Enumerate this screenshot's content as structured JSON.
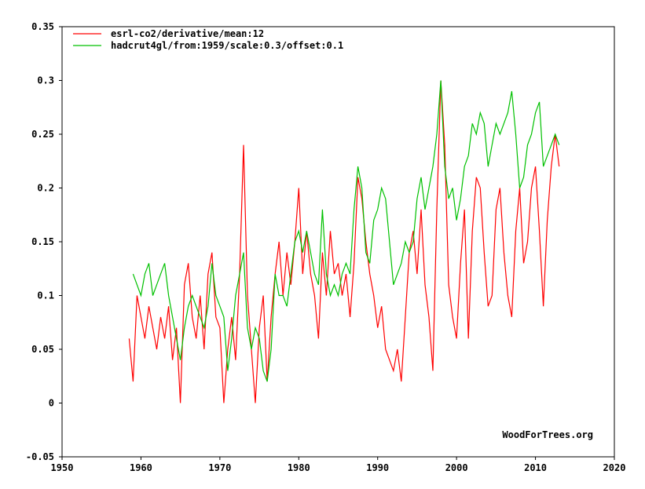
{
  "chart_data": {
    "type": "line",
    "title": "",
    "xlabel": "",
    "ylabel": "",
    "xlim": [
      1950,
      2020
    ],
    "ylim": [
      -0.05,
      0.35
    ],
    "xticks": [
      1950,
      1960,
      1970,
      1980,
      1990,
      2000,
      2010,
      2020
    ],
    "yticks": [
      -0.05,
      0,
      0.05,
      0.1,
      0.15,
      0.2,
      0.25,
      0.3,
      0.35
    ],
    "xtick_labels": [
      "1950",
      "1960",
      "1970",
      "1980",
      "1990",
      "2000",
      "2010",
      "2020"
    ],
    "ytick_labels": [
      "-0.05",
      "0",
      "0.05",
      "0.1",
      "0.15",
      "0.2",
      "0.25",
      "0.3",
      "0.35"
    ],
    "grid": false,
    "legend_position": "top-left",
    "credit": "WoodForTrees.org",
    "series": [
      {
        "name": "esrl-co2/derivative/mean:12",
        "color": "#ff0000",
        "x": [
          1958.5,
          1959.0,
          1959.5,
          1960.0,
          1960.5,
          1961.0,
          1961.5,
          1962.0,
          1962.5,
          1963.0,
          1963.5,
          1964.0,
          1964.5,
          1965.0,
          1965.5,
          1966.0,
          1966.5,
          1967.0,
          1967.5,
          1968.0,
          1968.5,
          1969.0,
          1969.5,
          1970.0,
          1970.5,
          1971.0,
          1971.5,
          1972.0,
          1972.5,
          1973.0,
          1973.5,
          1974.0,
          1974.5,
          1975.0,
          1975.5,
          1976.0,
          1976.5,
          1977.0,
          1977.5,
          1978.0,
          1978.5,
          1979.0,
          1979.5,
          1980.0,
          1980.5,
          1981.0,
          1981.5,
          1982.0,
          1982.5,
          1983.0,
          1983.5,
          1984.0,
          1984.5,
          1985.0,
          1985.5,
          1986.0,
          1986.5,
          1987.0,
          1987.5,
          1988.0,
          1988.5,
          1989.0,
          1989.5,
          1990.0,
          1990.5,
          1991.0,
          1991.5,
          1992.0,
          1992.5,
          1993.0,
          1993.5,
          1994.0,
          1994.5,
          1995.0,
          1995.5,
          1996.0,
          1996.5,
          1997.0,
          1997.5,
          1998.0,
          1998.5,
          1999.0,
          1999.5,
          2000.0,
          2000.5,
          2001.0,
          2001.5,
          2002.0,
          2002.5,
          2003.0,
          2003.5,
          2004.0,
          2004.5,
          2005.0,
          2005.5,
          2006.0,
          2006.5,
          2007.0,
          2007.5,
          2008.0,
          2008.5,
          2009.0,
          2009.5,
          2010.0,
          2010.5,
          2011.0,
          2011.5,
          2012.0,
          2012.5,
          2013.0
        ],
        "y": [
          0.06,
          0.02,
          0.1,
          0.08,
          0.06,
          0.09,
          0.07,
          0.05,
          0.08,
          0.06,
          0.09,
          0.04,
          0.07,
          0.0,
          0.11,
          0.13,
          0.08,
          0.06,
          0.1,
          0.05,
          0.12,
          0.14,
          0.08,
          0.07,
          0.0,
          0.05,
          0.08,
          0.04,
          0.12,
          0.24,
          0.1,
          0.05,
          0.0,
          0.07,
          0.1,
          0.02,
          0.08,
          0.12,
          0.15,
          0.1,
          0.14,
          0.11,
          0.15,
          0.2,
          0.12,
          0.16,
          0.12,
          0.1,
          0.06,
          0.14,
          0.1,
          0.16,
          0.12,
          0.13,
          0.1,
          0.12,
          0.08,
          0.13,
          0.21,
          0.19,
          0.15,
          0.12,
          0.1,
          0.07,
          0.09,
          0.05,
          0.04,
          0.03,
          0.05,
          0.02,
          0.08,
          0.14,
          0.16,
          0.12,
          0.18,
          0.11,
          0.08,
          0.03,
          0.18,
          0.3,
          0.24,
          0.11,
          0.08,
          0.06,
          0.13,
          0.18,
          0.06,
          0.16,
          0.21,
          0.2,
          0.14,
          0.09,
          0.1,
          0.18,
          0.2,
          0.14,
          0.1,
          0.08,
          0.16,
          0.2,
          0.13,
          0.15,
          0.2,
          0.22,
          0.16,
          0.09,
          0.17,
          0.22,
          0.25,
          0.22
        ]
      },
      {
        "name": "hadcrut4gl/from:1959/scale:0.3/offset:0.1",
        "color": "#00c000",
        "x": [
          1959.0,
          1959.5,
          1960.0,
          1960.5,
          1961.0,
          1961.5,
          1962.0,
          1962.5,
          1963.0,
          1963.5,
          1964.0,
          1964.5,
          1965.0,
          1965.5,
          1966.0,
          1966.5,
          1967.0,
          1967.5,
          1968.0,
          1968.5,
          1969.0,
          1969.5,
          1970.0,
          1970.5,
          1971.0,
          1971.5,
          1972.0,
          1972.5,
          1973.0,
          1973.5,
          1974.0,
          1974.5,
          1975.0,
          1975.5,
          1976.0,
          1976.5,
          1977.0,
          1977.5,
          1978.0,
          1978.5,
          1979.0,
          1979.5,
          1980.0,
          1980.5,
          1981.0,
          1981.5,
          1982.0,
          1982.5,
          1983.0,
          1983.5,
          1984.0,
          1984.5,
          1985.0,
          1985.5,
          1986.0,
          1986.5,
          1987.0,
          1987.5,
          1988.0,
          1988.5,
          1989.0,
          1989.5,
          1990.0,
          1990.5,
          1991.0,
          1991.5,
          1992.0,
          1992.5,
          1993.0,
          1993.5,
          1994.0,
          1994.5,
          1995.0,
          1995.5,
          1996.0,
          1996.5,
          1997.0,
          1997.5,
          1998.0,
          1998.5,
          1999.0,
          1999.5,
          2000.0,
          2000.5,
          2001.0,
          2001.5,
          2002.0,
          2002.5,
          2003.0,
          2003.5,
          2004.0,
          2004.5,
          2005.0,
          2005.5,
          2006.0,
          2006.5,
          2007.0,
          2007.5,
          2008.0,
          2008.5,
          2009.0,
          2009.5,
          2010.0,
          2010.5,
          2011.0,
          2011.5,
          2012.0,
          2012.5,
          2013.0
        ],
        "y": [
          0.12,
          0.11,
          0.1,
          0.12,
          0.13,
          0.1,
          0.11,
          0.12,
          0.13,
          0.1,
          0.08,
          0.06,
          0.04,
          0.07,
          0.09,
          0.1,
          0.09,
          0.08,
          0.07,
          0.09,
          0.13,
          0.1,
          0.09,
          0.08,
          0.03,
          0.06,
          0.1,
          0.12,
          0.14,
          0.07,
          0.05,
          0.07,
          0.06,
          0.03,
          0.02,
          0.05,
          0.12,
          0.1,
          0.1,
          0.09,
          0.12,
          0.15,
          0.16,
          0.14,
          0.16,
          0.14,
          0.12,
          0.11,
          0.18,
          0.12,
          0.1,
          0.11,
          0.1,
          0.12,
          0.13,
          0.12,
          0.18,
          0.22,
          0.2,
          0.14,
          0.13,
          0.17,
          0.18,
          0.2,
          0.19,
          0.15,
          0.11,
          0.12,
          0.13,
          0.15,
          0.14,
          0.15,
          0.19,
          0.21,
          0.18,
          0.2,
          0.22,
          0.25,
          0.3,
          0.22,
          0.19,
          0.2,
          0.17,
          0.19,
          0.22,
          0.23,
          0.26,
          0.25,
          0.27,
          0.26,
          0.22,
          0.24,
          0.26,
          0.25,
          0.26,
          0.27,
          0.29,
          0.25,
          0.2,
          0.21,
          0.24,
          0.25,
          0.27,
          0.28,
          0.22,
          0.23,
          0.24,
          0.25,
          0.24
        ]
      }
    ]
  }
}
